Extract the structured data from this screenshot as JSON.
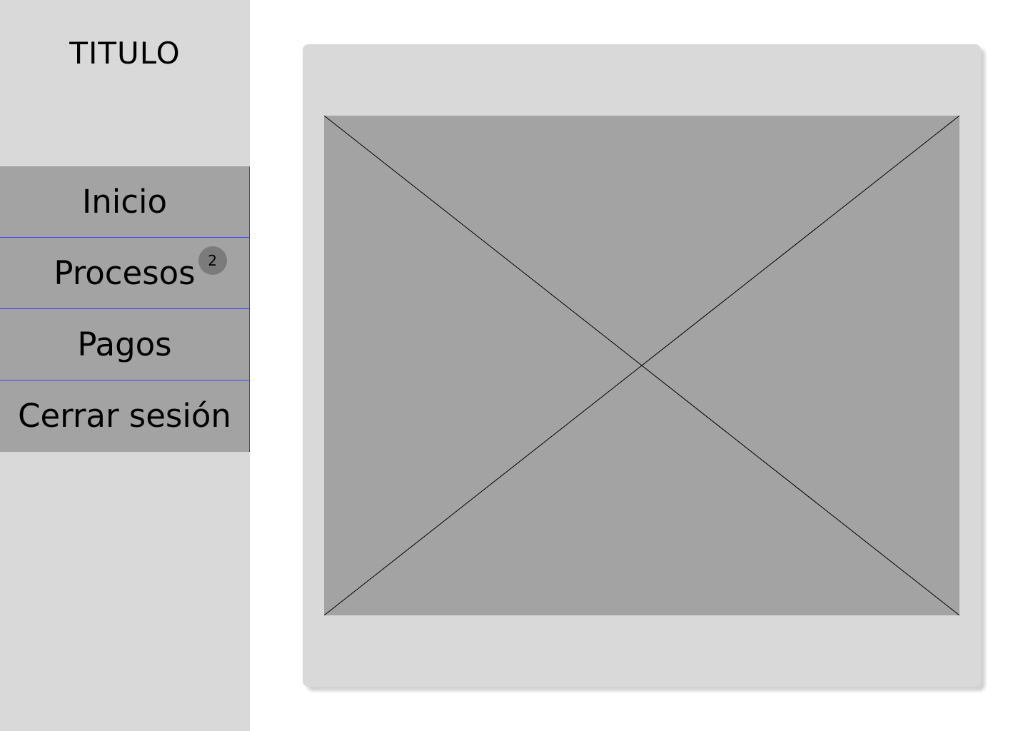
{
  "sidebar": {
    "title": "TITULO",
    "items": [
      {
        "label": "Inicio"
      },
      {
        "label": "Procesos",
        "badge": "2"
      },
      {
        "label": "Pagos"
      },
      {
        "label": "Cerrar sesión"
      }
    ]
  },
  "main": {
    "image_placeholder_icon": "image-placeholder-icon"
  },
  "colors": {
    "sidebar_bg": "#d9d9d9",
    "nav_item_bg": "#a3a3a3",
    "nav_border": "#3c3cff",
    "badge_bg": "#7b7b7b",
    "card_bg": "#d9d9d9",
    "placeholder_bg": "#a3a3a3"
  }
}
